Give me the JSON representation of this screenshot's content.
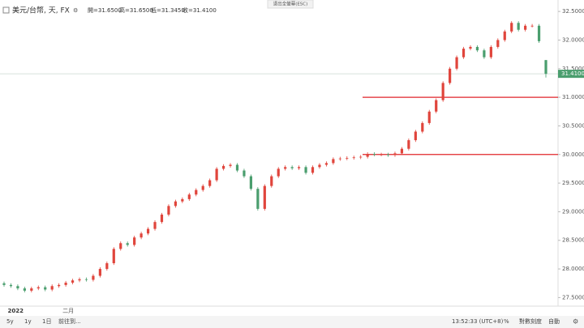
{
  "header": {
    "symbol": "美元/台幣, 天, FX",
    "ohlc": [
      "開=31.6500",
      "高=31.6500",
      "低=31.3450",
      "收=31.4100"
    ],
    "exit_fullscreen": "退出全螢幕(ESC)"
  },
  "toolbar": {
    "left": [
      "5y",
      "1y",
      "1日",
      "前往到..."
    ],
    "right": [
      "13:52:33 (UTC+8)",
      "%",
      "對數刻度",
      "自動"
    ]
  },
  "chart_data": {
    "type": "candlestick",
    "categories": [
      null,
      "2022",
      null,
      null,
      null,
      null,
      null,
      null,
      null,
      "二月",
      null,
      null,
      null,
      null,
      null,
      null,
      null,
      null,
      null,
      null,
      null,
      null,
      null,
      null,
      null,
      null,
      null,
      null,
      null,
      null,
      null,
      null,
      null,
      null,
      null,
      null,
      null,
      null,
      null,
      null,
      null,
      null,
      null,
      null,
      null,
      null,
      null,
      null,
      null,
      null,
      null,
      null,
      null,
      null,
      null,
      null,
      null,
      null,
      null,
      null,
      null,
      null,
      null,
      null,
      null,
      null,
      null,
      null,
      null,
      null,
      null,
      null,
      null,
      null,
      null,
      null,
      null,
      null,
      null,
      null
    ],
    "open": [
      27.75,
      27.72,
      27.7,
      27.66,
      27.62,
      27.66,
      27.68,
      27.64,
      27.7,
      27.72,
      27.76,
      27.8,
      27.82,
      27.81,
      27.88,
      28.0,
      28.1,
      28.35,
      28.45,
      28.42,
      28.55,
      28.62,
      28.7,
      28.82,
      28.95,
      29.1,
      29.18,
      29.22,
      29.3,
      29.38,
      29.45,
      29.55,
      29.75,
      29.8,
      29.82,
      29.72,
      29.62,
      29.4,
      29.05,
      29.45,
      29.62,
      29.75,
      29.78,
      29.76,
      29.78,
      29.68,
      29.78,
      29.82,
      29.85,
      29.92,
      29.93,
      29.94,
      29.95,
      29.96,
      30.01,
      30.0,
      30.0,
      29.99,
      30.02,
      30.1,
      30.25,
      30.4,
      30.55,
      30.75,
      30.95,
      31.25,
      31.5,
      31.7,
      31.85,
      31.88,
      31.82,
      31.7,
      31.88,
      32.0,
      32.15,
      32.3,
      32.18,
      32.25,
      32.25,
      31.65
    ],
    "high": [
      27.78,
      27.75,
      27.73,
      27.69,
      27.69,
      27.71,
      27.71,
      27.73,
      27.75,
      27.79,
      27.83,
      27.85,
      27.85,
      27.91,
      28.03,
      28.13,
      28.38,
      28.48,
      28.48,
      28.58,
      28.65,
      28.73,
      28.85,
      28.98,
      29.13,
      29.21,
      29.25,
      29.33,
      29.41,
      29.48,
      29.58,
      29.78,
      29.83,
      29.85,
      29.85,
      29.75,
      29.65,
      29.43,
      29.48,
      29.65,
      29.78,
      29.81,
      29.81,
      29.81,
      29.81,
      29.81,
      29.85,
      29.88,
      29.95,
      29.96,
      29.97,
      29.98,
      29.99,
      30.04,
      30.04,
      30.03,
      30.03,
      30.05,
      30.13,
      30.28,
      30.43,
      30.58,
      30.78,
      30.98,
      31.28,
      31.53,
      31.73,
      31.88,
      31.91,
      31.91,
      31.85,
      31.91,
      32.03,
      32.18,
      32.33,
      32.33,
      32.28,
      32.28,
      32.28,
      31.65
    ],
    "low": [
      27.69,
      27.67,
      27.63,
      27.59,
      27.59,
      27.63,
      27.61,
      27.61,
      27.67,
      27.69,
      27.73,
      27.77,
      27.78,
      27.78,
      27.85,
      27.97,
      28.07,
      28.32,
      28.39,
      28.39,
      28.52,
      28.59,
      28.67,
      28.79,
      28.92,
      29.07,
      29.15,
      29.19,
      29.27,
      29.35,
      29.42,
      29.52,
      29.72,
      29.77,
      29.69,
      29.59,
      29.37,
      29.02,
      29.02,
      29.42,
      29.59,
      29.72,
      29.73,
      29.73,
      29.65,
      29.65,
      29.75,
      29.79,
      29.82,
      29.89,
      29.9,
      29.91,
      29.92,
      29.93,
      29.97,
      29.97,
      29.96,
      29.96,
      29.99,
      30.07,
      30.22,
      30.37,
      30.52,
      30.72,
      30.92,
      31.22,
      31.47,
      31.67,
      31.82,
      31.79,
      31.67,
      31.67,
      31.85,
      31.97,
      32.12,
      32.15,
      32.15,
      32.22,
      31.95,
      31.345
    ],
    "close": [
      27.72,
      27.7,
      27.66,
      27.62,
      27.66,
      27.68,
      27.64,
      27.7,
      27.72,
      27.76,
      27.8,
      27.82,
      27.81,
      27.88,
      28.0,
      28.1,
      28.35,
      28.45,
      28.42,
      28.55,
      28.62,
      28.7,
      28.82,
      28.95,
      29.1,
      29.18,
      29.22,
      29.3,
      29.38,
      29.45,
      29.55,
      29.75,
      29.8,
      29.82,
      29.72,
      29.62,
      29.4,
      29.05,
      29.45,
      29.62,
      29.75,
      29.78,
      29.76,
      29.78,
      29.68,
      29.78,
      29.82,
      29.85,
      29.92,
      29.93,
      29.94,
      29.95,
      29.96,
      30.01,
      30.0,
      30.0,
      29.99,
      30.02,
      30.1,
      30.25,
      30.4,
      30.55,
      30.75,
      30.95,
      31.25,
      31.5,
      31.7,
      31.85,
      31.88,
      31.82,
      31.7,
      31.88,
      32.0,
      32.15,
      32.3,
      32.18,
      32.25,
      32.25,
      31.98,
      31.41
    ],
    "up_color": "#e0453c",
    "down_color": "#4a9e6e",
    "last_price_label": "31.4100",
    "hlines": [
      {
        "value": 31.0,
        "color": "#e0242a"
      },
      {
        "value": 30.0,
        "color": "#e0242a"
      }
    ],
    "ylim": [
      27.35,
      32.7
    ],
    "yticks": [
      {
        "value": 27.5,
        "label": "27.5000"
      },
      {
        "value": 28.0,
        "label": "28.0000"
      },
      {
        "value": 28.5,
        "label": "28.5000"
      },
      {
        "value": 29.0,
        "label": "29.0000"
      },
      {
        "value": 29.5,
        "label": "29.5000"
      },
      {
        "value": 30.0,
        "label": "30.0000"
      },
      {
        "value": 30.5,
        "label": "30.5000"
      },
      {
        "value": 31.0,
        "label": "31.0000"
      },
      {
        "value": 31.5,
        "label": "31.5000"
      },
      {
        "value": 32.0,
        "label": "32.0000"
      },
      {
        "value": 32.5,
        "label": "32.5000"
      }
    ]
  }
}
